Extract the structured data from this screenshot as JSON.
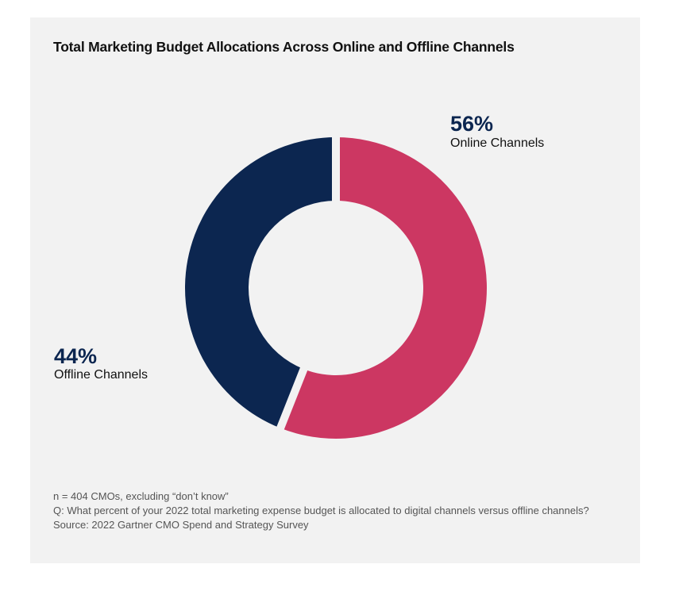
{
  "chart_data": {
    "type": "pie",
    "variant": "donut",
    "title": "Total Marketing Budget Allocations Across Online and Offline Channels",
    "unit": "%",
    "slices": [
      {
        "label": "Online Channels",
        "value": 56,
        "display": "56%",
        "color": "#cc3762"
      },
      {
        "label": "Offline Channels",
        "value": 44,
        "display": "44%",
        "color": "#0c2650"
      }
    ],
    "start": "top",
    "direction": "clockwise",
    "legend": "none"
  },
  "footnotes": [
    "n = 404 CMOs, excluding “don’t know”",
    "Q: What percent of your 2022 total marketing expense budget is allocated to digital channels versus offline channels?",
    "Source: 2022 Gartner CMO Spend and Strategy Survey"
  ],
  "colors": {
    "background": "#f2f2f2",
    "accent_online": "#cc3762",
    "accent_offline": "#0c2650"
  }
}
